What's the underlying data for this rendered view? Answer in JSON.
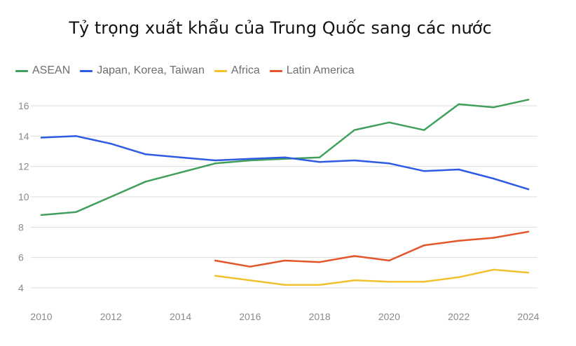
{
  "chart_data": {
    "type": "line",
    "title": "Tỷ trọng xuất khẩu của Trung Quốc sang các nước",
    "xlabel": "",
    "ylabel": "",
    "x": [
      2010,
      2011,
      2012,
      2013,
      2014,
      2015,
      2016,
      2017,
      2018,
      2019,
      2020,
      2021,
      2022,
      2023,
      2024
    ],
    "x_ticks": [
      2010,
      2012,
      2014,
      2016,
      2018,
      2020,
      2022,
      2024
    ],
    "y_ticks": [
      4,
      6,
      8,
      10,
      12,
      14,
      16
    ],
    "xlim": [
      2010,
      2024
    ],
    "ylim": [
      3,
      17
    ],
    "grid": "horizontal",
    "legend_position": "top-left",
    "series": [
      {
        "name": "ASEAN",
        "color": "#3f9f5b",
        "values": [
          8.8,
          9.0,
          10.0,
          11.0,
          11.6,
          12.2,
          12.4,
          12.5,
          12.6,
          14.4,
          14.9,
          14.4,
          16.1,
          15.9,
          16.4
        ]
      },
      {
        "name": "Japan, Korea, Taiwan",
        "color": "#2d5be3",
        "values": [
          13.9,
          14.0,
          13.5,
          12.8,
          12.6,
          12.4,
          12.5,
          12.6,
          12.3,
          12.4,
          12.2,
          11.7,
          11.8,
          11.2,
          10.5
        ]
      },
      {
        "name": "Africa",
        "color": "#f2c12e",
        "values": [
          null,
          null,
          null,
          null,
          null,
          4.8,
          4.5,
          4.2,
          4.2,
          4.5,
          4.4,
          4.4,
          4.7,
          5.2,
          5.0
        ]
      },
      {
        "name": "Latin America",
        "color": "#e3562a",
        "values": [
          null,
          null,
          null,
          null,
          null,
          5.8,
          5.4,
          5.8,
          5.7,
          6.1,
          5.8,
          6.8,
          7.1,
          7.3,
          7.7
        ]
      }
    ]
  }
}
